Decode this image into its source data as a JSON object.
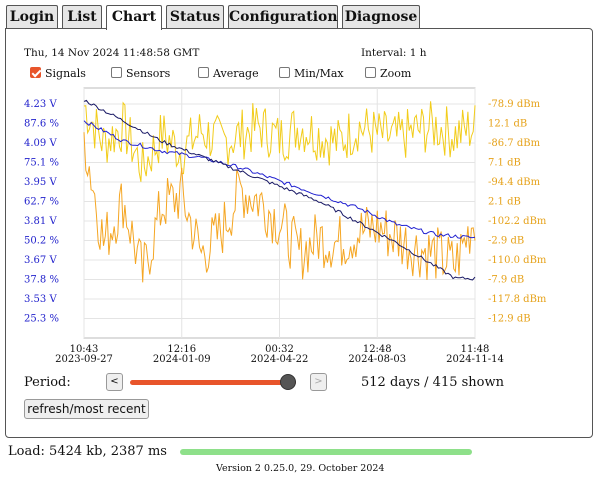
{
  "tabs": [
    {
      "label": "Login",
      "active": false
    },
    {
      "label": "List",
      "active": false
    },
    {
      "label": "Chart",
      "active": true
    },
    {
      "label": "Status",
      "active": false
    },
    {
      "label": "Configuration",
      "active": false
    },
    {
      "label": "Diagnose",
      "active": false
    }
  ],
  "header": {
    "timestamp": "Thu, 14 Nov 2024 11:48:58 GMT",
    "interval": "Interval: 1 h"
  },
  "options": [
    {
      "label": "Signals",
      "checked": true
    },
    {
      "label": "Sensors",
      "checked": false
    },
    {
      "label": "Average",
      "checked": false
    },
    {
      "label": "Min/Max",
      "checked": false
    },
    {
      "label": "Zoom",
      "checked": false
    }
  ],
  "colors": {
    "blue": "#2020d0",
    "navy": "#1a1a66",
    "orange": "#f5a623",
    "yellow": "#f2cc1a",
    "accent": "#e8552b",
    "load_bar": "#8ee08a"
  },
  "chart_data": {
    "type": "line",
    "x_ticks": [
      {
        "time": "10:43",
        "date": "2023-09-27"
      },
      {
        "time": "12:16",
        "date": "2024-01-09"
      },
      {
        "time": "00:32",
        "date": "2024-04-22"
      },
      {
        "time": "12:48",
        "date": "2024-08-03"
      },
      {
        "time": "11:48",
        "date": "2024-11-14"
      }
    ],
    "left_axis_labels": [
      "4.23 V",
      "87.6 %",
      "4.09 V",
      "75.1 %",
      "3.95 V",
      "62.7 %",
      "3.81 V",
      "50.2 %",
      "3.67 V",
      "37.8 %",
      "3.53 V",
      "25.3 %"
    ],
    "right_axis_labels": [
      "-78.9 dBm",
      "12.1 dB",
      "-86.7 dBm",
      "7.1 dB",
      "-94.4 dBm",
      "2.1 dB",
      "-102.2 dBm",
      "-2.9 dB",
      "-110.0 dBm",
      "-7.9 dB",
      "-117.8 dBm",
      "-12.9 dB"
    ],
    "series": [
      {
        "unit": "V",
        "axis": "left",
        "ylim": [
          3.46,
          4.3
        ],
        "points": [
          [
            0,
            4.26
          ],
          [
            0.1,
            4.19
          ],
          [
            0.2,
            4.12
          ],
          [
            0.3,
            4.07
          ],
          [
            0.4,
            4.02
          ],
          [
            0.5,
            3.97
          ],
          [
            0.6,
            3.92
          ],
          [
            0.7,
            3.85
          ],
          [
            0.8,
            3.78
          ],
          [
            0.9,
            3.7
          ],
          [
            0.95,
            3.66
          ],
          [
            1.0,
            3.66
          ]
        ]
      },
      {
        "unit": "%",
        "axis": "left",
        "ylim": [
          19.1,
          93.8
        ],
        "points": [
          [
            0,
            84
          ],
          [
            0.1,
            78
          ],
          [
            0.2,
            75
          ],
          [
            0.3,
            73
          ],
          [
            0.4,
            70
          ],
          [
            0.5,
            66
          ],
          [
            0.6,
            62
          ],
          [
            0.7,
            58
          ],
          [
            0.8,
            53
          ],
          [
            0.9,
            50
          ],
          [
            1.0,
            49
          ]
        ]
      },
      {
        "unit": "dBm",
        "axis": "right",
        "ylim": [
          -121.7,
          -75.0
        ],
        "points": [
          [
            0,
            -84
          ],
          [
            0.05,
            -104
          ],
          [
            0.1,
            -96
          ],
          [
            0.15,
            -110
          ],
          [
            0.2,
            -97
          ],
          [
            0.25,
            -95
          ],
          [
            0.3,
            -106
          ],
          [
            0.35,
            -102
          ],
          [
            0.4,
            -94
          ],
          [
            0.45,
            -96
          ],
          [
            0.5,
            -100
          ],
          [
            0.55,
            -106
          ],
          [
            0.6,
            -103
          ],
          [
            0.65,
            -104
          ],
          [
            0.7,
            -102
          ],
          [
            0.75,
            -101
          ],
          [
            0.8,
            -103
          ],
          [
            0.85,
            -105
          ],
          [
            0.9,
            -106
          ],
          [
            0.95,
            -108
          ],
          [
            1.0,
            -99
          ]
        ]
      },
      {
        "unit": "dB",
        "axis": "right",
        "ylim": [
          -15.4,
          14.6
        ],
        "points": [
          [
            0,
            12.5
          ],
          [
            0.05,
            8
          ],
          [
            0.1,
            10
          ],
          [
            0.15,
            5
          ],
          [
            0.2,
            9
          ],
          [
            0.25,
            7
          ],
          [
            0.3,
            9.5
          ],
          [
            0.35,
            8
          ],
          [
            0.4,
            9
          ],
          [
            0.45,
            10
          ],
          [
            0.5,
            8.5
          ],
          [
            0.55,
            10
          ],
          [
            0.6,
            9
          ],
          [
            0.65,
            8
          ],
          [
            0.7,
            10
          ],
          [
            0.75,
            9
          ],
          [
            0.8,
            8.5
          ],
          [
            0.85,
            9.5
          ],
          [
            0.9,
            10
          ],
          [
            0.95,
            9
          ],
          [
            1.0,
            10
          ]
        ]
      }
    ]
  },
  "controls": {
    "period_label": "Period:",
    "prev": "<",
    "next": ">",
    "slider_value": 0.97,
    "shown_text": "512 days / 415 shown",
    "refresh_label": "refresh/most recent"
  },
  "footer": {
    "load": "Load: 5424 kb, 2387 ms",
    "load_progress": 1.0,
    "version": "Version 2 0.25.0, 29. October 2024"
  }
}
